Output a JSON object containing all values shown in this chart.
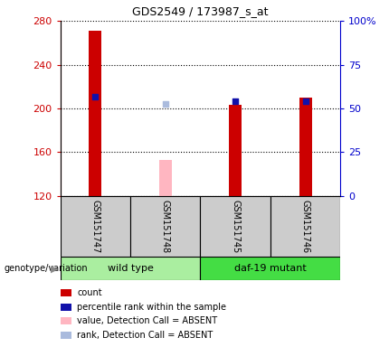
{
  "title": "GDS2549 / 173987_s_at",
  "samples": [
    "GSM151747",
    "GSM151748",
    "GSM151745",
    "GSM151746"
  ],
  "ylim_left": [
    120,
    280
  ],
  "ylim_right": [
    0,
    100
  ],
  "yticks_left": [
    120,
    160,
    200,
    240,
    280
  ],
  "yticks_right": [
    0,
    25,
    50,
    75,
    100
  ],
  "ytick_labels_right": [
    "0",
    "25",
    "50",
    "75",
    "100%"
  ],
  "bar_values": [
    271,
    null,
    203,
    210
  ],
  "bar_color": "#CC0000",
  "bar_absent": [
    null,
    153,
    null,
    null
  ],
  "bar_absent_color": "#FFB6C1",
  "rank_dots": [
    211,
    null,
    207,
    207
  ],
  "rank_dot_color": "#1111AA",
  "rank_absent_dots": [
    null,
    204,
    null,
    null
  ],
  "rank_absent_color": "#AABBDD",
  "dot_size": 25,
  "bar_width": 0.18,
  "left_axis_color": "#CC0000",
  "right_axis_color": "#0000CC",
  "genotype_label": "genotype/variation",
  "groups": [
    {
      "label": "wild type",
      "start": 0,
      "end": 1,
      "color": "#AAEEA0"
    },
    {
      "label": "daf-19 mutant",
      "start": 2,
      "end": 3,
      "color": "#44DD44"
    }
  ],
  "sample_box_color": "#CCCCCC",
  "legend_items": [
    {
      "color": "#CC0000",
      "label": "count"
    },
    {
      "color": "#1111AA",
      "label": "percentile rank within the sample"
    },
    {
      "color": "#FFB6C1",
      "label": "value, Detection Call = ABSENT"
    },
    {
      "color": "#AABBDD",
      "label": "rank, Detection Call = ABSENT"
    }
  ]
}
